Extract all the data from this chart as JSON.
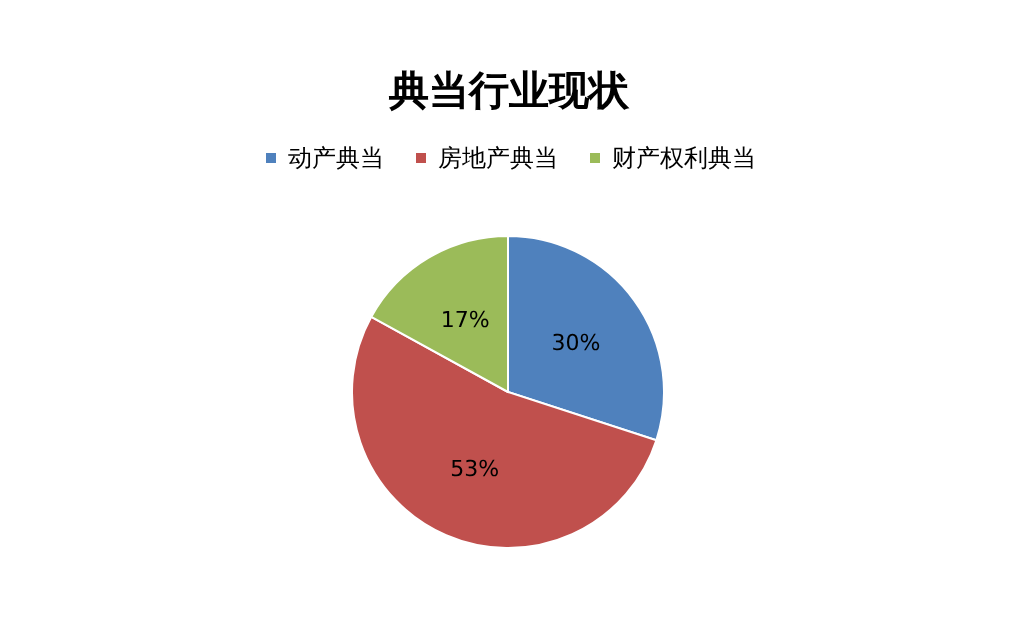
{
  "chart_data": {
    "type": "pie",
    "title": "典当行业现状",
    "categories": [
      "动产典当",
      "房地产典当",
      "财产权利典当"
    ],
    "values": [
      30,
      53,
      17
    ],
    "colors": [
      "#4f81bd",
      "#c0504d",
      "#9bbb59"
    ],
    "value_labels": [
      "30%",
      "53%",
      "17%"
    ],
    "legend": "top"
  }
}
